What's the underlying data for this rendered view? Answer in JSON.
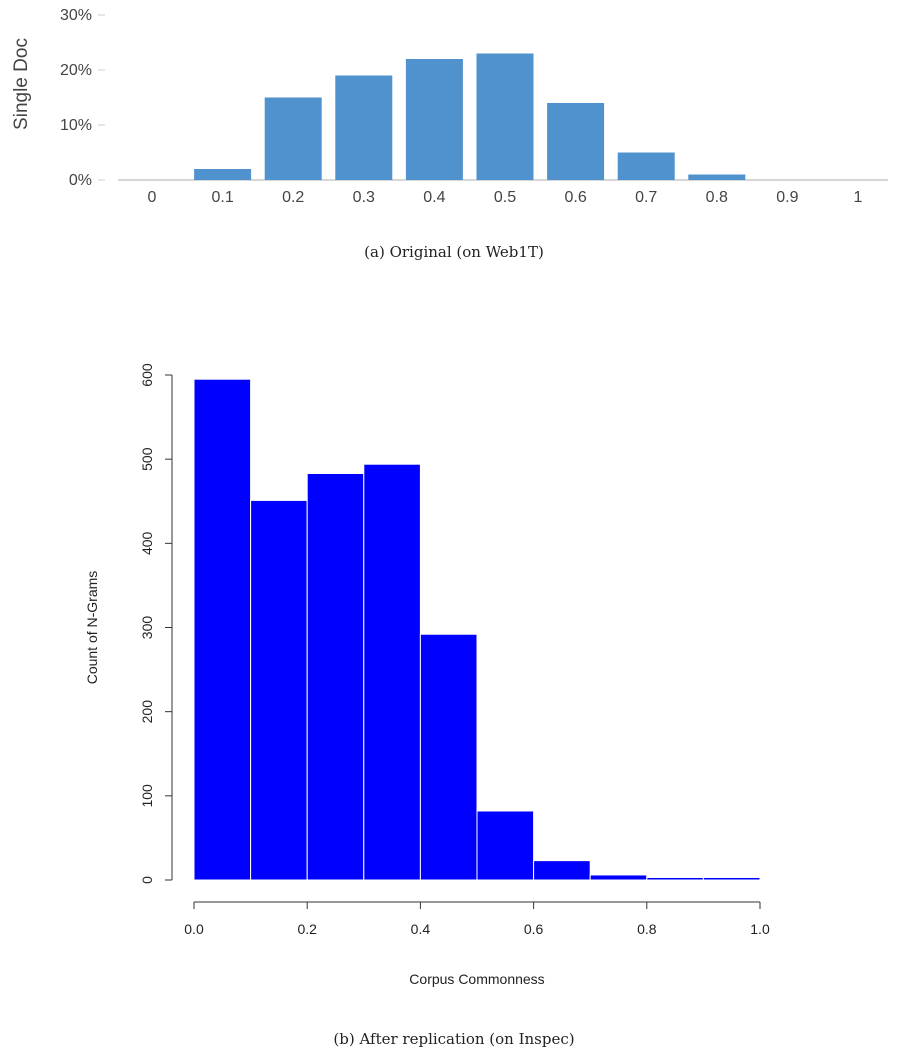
{
  "figures": [
    {
      "caption": "(a) Original (on Web1T)"
    },
    {
      "caption": "(b) After replication (on Inspec)"
    }
  ],
  "chart_data": [
    {
      "type": "bar",
      "title": "",
      "xlabel": "",
      "ylabel": "Single Doc",
      "categories": [
        "0",
        "0.1",
        "0.2",
        "0.3",
        "0.4",
        "0.5",
        "0.6",
        "0.7",
        "0.8",
        "0.9",
        "1"
      ],
      "values": [
        0,
        2,
        15,
        19,
        22,
        23,
        14,
        5,
        1,
        0,
        0
      ],
      "ylim": [
        0,
        30
      ],
      "yticks": [
        "0%",
        "10%",
        "20%",
        "30%"
      ],
      "color": "#4f92ce",
      "grid": false
    },
    {
      "type": "bar",
      "title": "",
      "xlabel": "Corpus Commonness",
      "ylabel": "Count of N-Grams",
      "bin_edges": [
        0.0,
        0.1,
        0.2,
        0.3,
        0.4,
        0.5,
        0.6,
        0.7,
        0.8,
        0.9,
        1.0
      ],
      "values": [
        595,
        451,
        483,
        494,
        292,
        82,
        23,
        6,
        3,
        3
      ],
      "xlim": [
        0,
        1
      ],
      "ylim": [
        0,
        600
      ],
      "xticks": [
        "0.0",
        "0.2",
        "0.4",
        "0.6",
        "0.8",
        "1.0"
      ],
      "yticks": [
        "0",
        "100",
        "200",
        "300",
        "400",
        "500",
        "600"
      ],
      "color": "#0000ff",
      "grid": false
    }
  ]
}
